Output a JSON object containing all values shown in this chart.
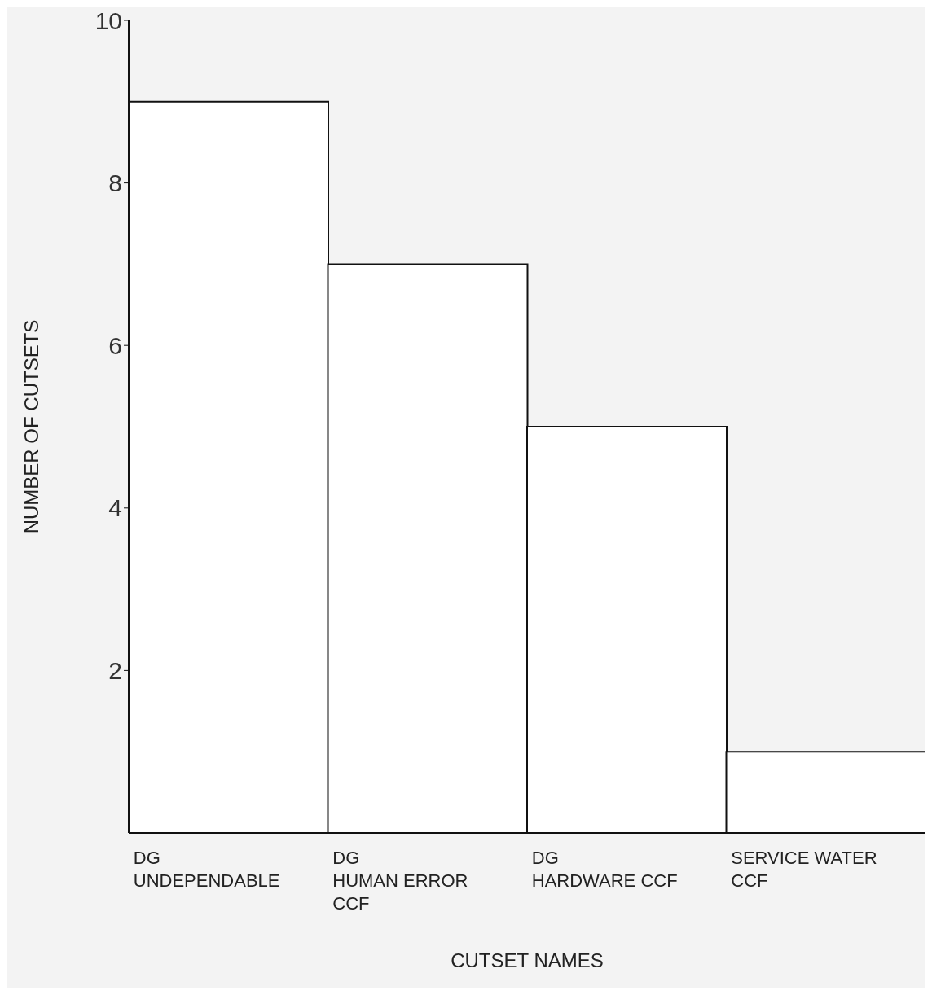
{
  "chart_data": {
    "type": "bar",
    "categories": [
      "DG\nUNDEPENDABLE",
      "DG\nHUMAN ERROR\nCCF",
      "DG\nHARDWARE CCF",
      "SERVICE WATER\nCCF"
    ],
    "values": [
      9,
      7,
      5,
      1
    ],
    "color": "#ffffff",
    "xlabel": "CUTSET NAMES",
    "ylabel": "NUMBER OF CUTSETS",
    "ylim": [
      0,
      10
    ],
    "yticks": [
      2,
      4,
      6,
      8,
      10
    ],
    "grid": false,
    "legend": false
  }
}
